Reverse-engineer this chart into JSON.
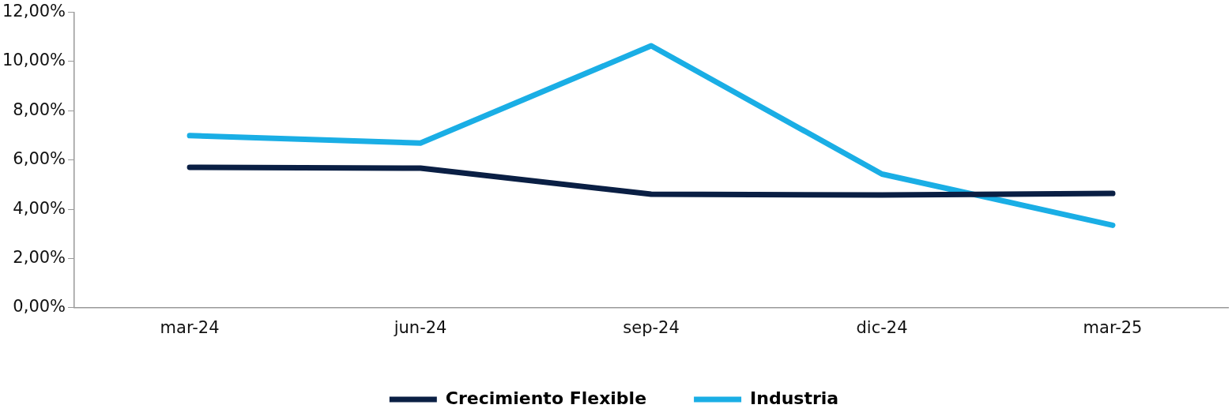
{
  "chart_data": {
    "type": "line",
    "categories": [
      "mar-24",
      "jun-24",
      "sep-24",
      "dic-24",
      "mar-25"
    ],
    "series": [
      {
        "name": "Crecimiento Flexible",
        "color": "#0a1f44",
        "values": [
          5.7,
          5.67,
          4.61,
          4.58,
          4.64
        ]
      },
      {
        "name": "Industria",
        "color": "#1aaee5",
        "values": [
          6.99,
          6.69,
          10.64,
          5.43,
          3.35
        ]
      }
    ],
    "ylim": [
      0,
      12
    ],
    "yticks": [
      {
        "value": 0,
        "label": "0,00%"
      },
      {
        "value": 2,
        "label": "2,00%"
      },
      {
        "value": 4,
        "label": "4,00%"
      },
      {
        "value": 6,
        "label": "6,00%"
      },
      {
        "value": 8,
        "label": "8,00%"
      },
      {
        "value": 10,
        "label": "10,00%"
      },
      {
        "value": 12,
        "label": "12,00%"
      }
    ],
    "grid": false,
    "legend": "bottom",
    "marker": "none",
    "line_style": "solid"
  }
}
